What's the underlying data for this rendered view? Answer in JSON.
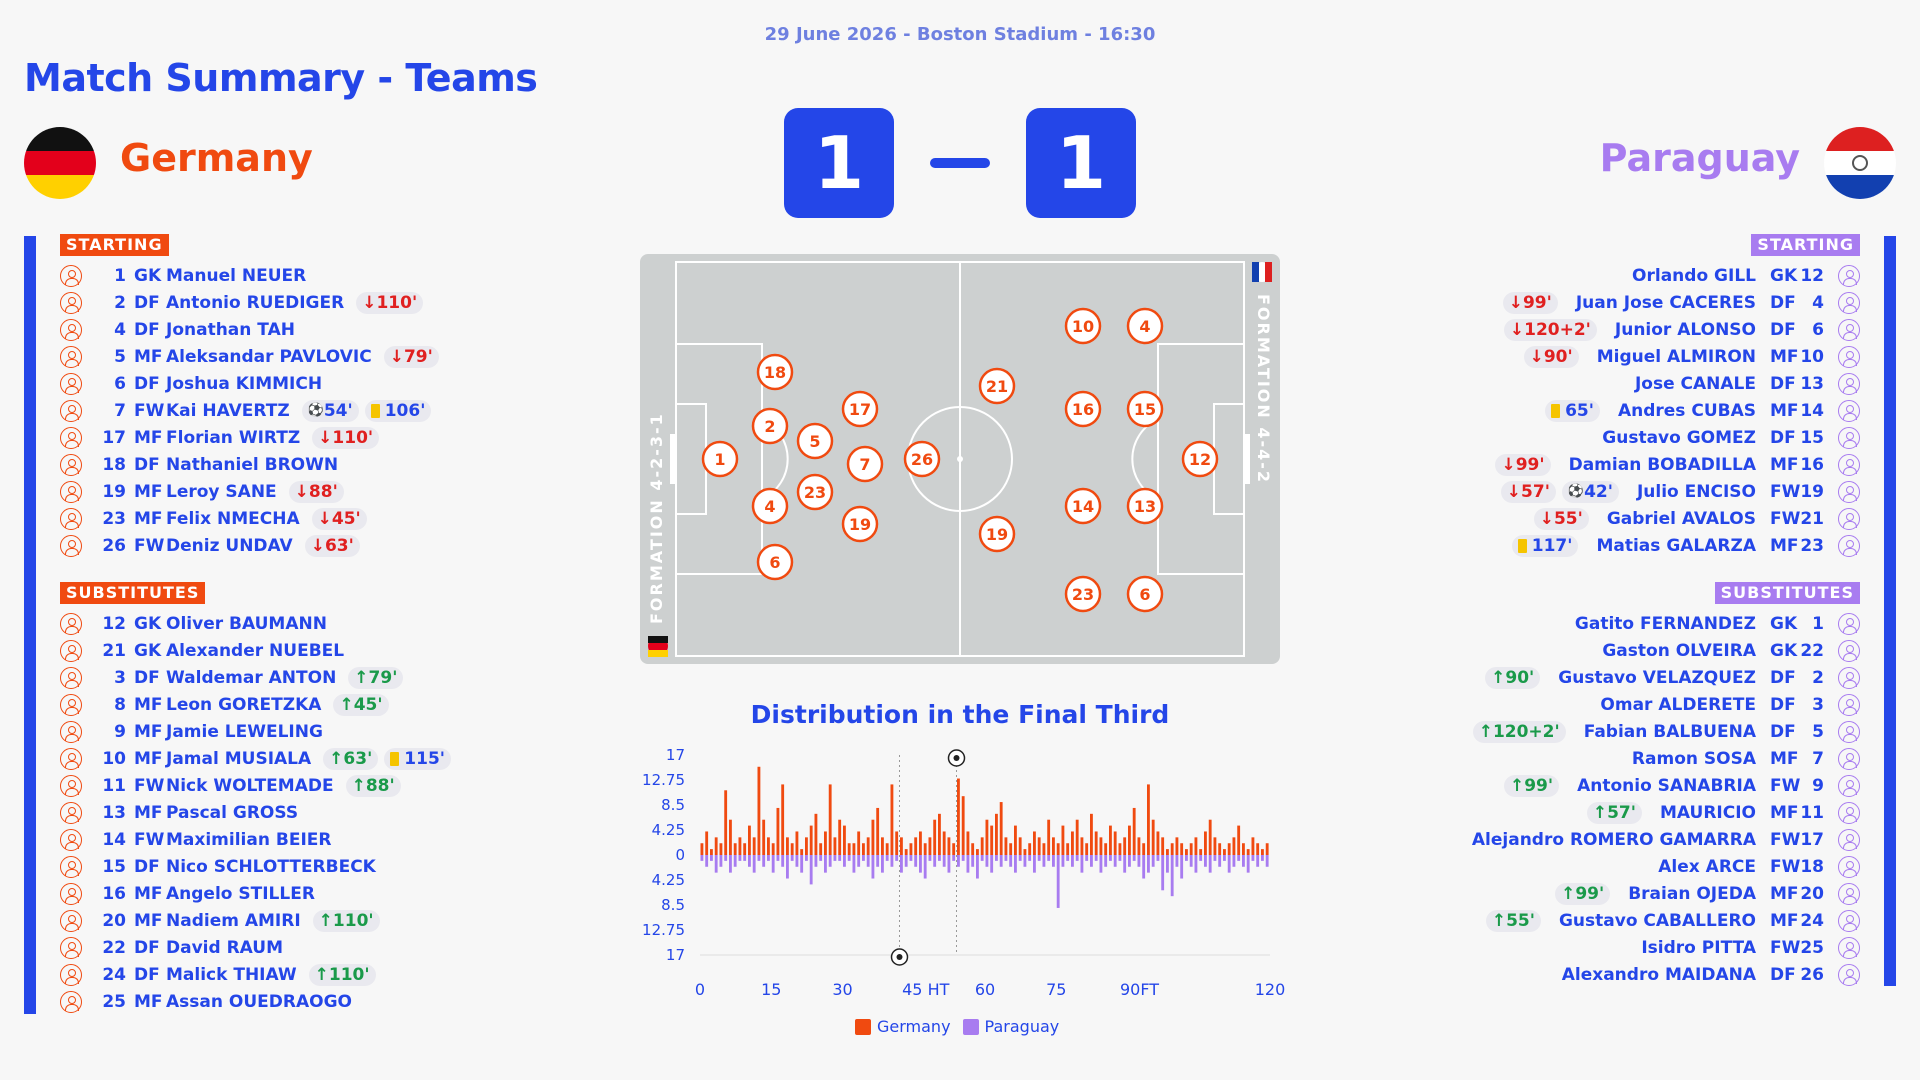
{
  "header": {
    "subtitle": "29 June 2026 - Boston Stadium - 16:30",
    "title": "Match Summary - Teams"
  },
  "home": {
    "name": "Germany",
    "score": "1",
    "color": "#f04a10"
  },
  "away": {
    "name": "Paraguay",
    "score": "1",
    "color": "#a87cf0"
  },
  "labels": {
    "starting": "STARTING",
    "substitutes": "SUBSTITUTES"
  },
  "germany_starting": [
    {
      "num": "1",
      "pos": "GK",
      "name": "Manuel NEUER",
      "events": []
    },
    {
      "num": "2",
      "pos": "DF",
      "name": "Antonio RUEDIGER",
      "events": [
        {
          "type": "out",
          "text": "110'"
        }
      ]
    },
    {
      "num": "4",
      "pos": "DF",
      "name": "Jonathan TAH",
      "events": []
    },
    {
      "num": "5",
      "pos": "MF",
      "name": "Aleksandar PAVLOVIC",
      "events": [
        {
          "type": "out",
          "text": "79'"
        }
      ]
    },
    {
      "num": "6",
      "pos": "DF",
      "name": "Joshua KIMMICH",
      "events": []
    },
    {
      "num": "7",
      "pos": "FW",
      "name": "Kai HAVERTZ",
      "events": [
        {
          "type": "goal",
          "text": "54'"
        },
        {
          "type": "yellow",
          "text": "106'"
        }
      ]
    },
    {
      "num": "17",
      "pos": "MF",
      "name": "Florian WIRTZ",
      "events": [
        {
          "type": "out",
          "text": "110'"
        }
      ]
    },
    {
      "num": "18",
      "pos": "DF",
      "name": "Nathaniel BROWN",
      "events": []
    },
    {
      "num": "19",
      "pos": "MF",
      "name": "Leroy SANE",
      "events": [
        {
          "type": "out",
          "text": "88'"
        }
      ]
    },
    {
      "num": "23",
      "pos": "MF",
      "name": "Felix NMECHA",
      "events": [
        {
          "type": "out",
          "text": "45'"
        }
      ]
    },
    {
      "num": "26",
      "pos": "FW",
      "name": "Deniz UNDAV",
      "events": [
        {
          "type": "out",
          "text": "63'"
        }
      ]
    }
  ],
  "germany_subs": [
    {
      "num": "12",
      "pos": "GK",
      "name": "Oliver BAUMANN",
      "events": []
    },
    {
      "num": "21",
      "pos": "GK",
      "name": "Alexander NUEBEL",
      "events": []
    },
    {
      "num": "3",
      "pos": "DF",
      "name": "Waldemar ANTON",
      "events": [
        {
          "type": "in",
          "text": "79'"
        }
      ]
    },
    {
      "num": "8",
      "pos": "MF",
      "name": "Leon GORETZKA",
      "events": [
        {
          "type": "in",
          "text": "45'"
        }
      ]
    },
    {
      "num": "9",
      "pos": "MF",
      "name": "Jamie LEWELING",
      "events": []
    },
    {
      "num": "10",
      "pos": "MF",
      "name": "Jamal MUSIALA",
      "events": [
        {
          "type": "in",
          "text": "63'"
        },
        {
          "type": "yellow",
          "text": "115'"
        }
      ]
    },
    {
      "num": "11",
      "pos": "FW",
      "name": "Nick WOLTEMADE",
      "events": [
        {
          "type": "in",
          "text": "88'"
        }
      ]
    },
    {
      "num": "13",
      "pos": "MF",
      "name": "Pascal GROSS",
      "events": []
    },
    {
      "num": "14",
      "pos": "FW",
      "name": "Maximilian BEIER",
      "events": []
    },
    {
      "num": "15",
      "pos": "DF",
      "name": "Nico SCHLOTTERBECK",
      "events": []
    },
    {
      "num": "16",
      "pos": "MF",
      "name": "Angelo STILLER",
      "events": []
    },
    {
      "num": "20",
      "pos": "MF",
      "name": "Nadiem AMIRI",
      "events": [
        {
          "type": "in",
          "text": "110'"
        }
      ]
    },
    {
      "num": "22",
      "pos": "DF",
      "name": "David RAUM",
      "events": []
    },
    {
      "num": "24",
      "pos": "DF",
      "name": "Malick THIAW",
      "events": [
        {
          "type": "in",
          "text": "110'"
        }
      ]
    },
    {
      "num": "25",
      "pos": "MF",
      "name": "Assan OUEDRAOGO",
      "events": []
    }
  ],
  "paraguay_starting": [
    {
      "num": "12",
      "pos": "GK",
      "name": "Orlando GILL",
      "events": []
    },
    {
      "num": "4",
      "pos": "DF",
      "name": "Juan Jose CACERES",
      "events": [
        {
          "type": "out",
          "text": "99'"
        }
      ]
    },
    {
      "num": "6",
      "pos": "DF",
      "name": "Junior ALONSO",
      "events": [
        {
          "type": "out",
          "text": "120+2'"
        }
      ]
    },
    {
      "num": "10",
      "pos": "MF",
      "name": "Miguel ALMIRON",
      "events": [
        {
          "type": "out",
          "text": "90'"
        }
      ]
    },
    {
      "num": "13",
      "pos": "DF",
      "name": "Jose CANALE",
      "events": []
    },
    {
      "num": "14",
      "pos": "MF",
      "name": "Andres CUBAS",
      "events": [
        {
          "type": "yellow",
          "text": "65'"
        }
      ]
    },
    {
      "num": "15",
      "pos": "DF",
      "name": "Gustavo GOMEZ",
      "events": []
    },
    {
      "num": "16",
      "pos": "MF",
      "name": "Damian BOBADILLA",
      "events": [
        {
          "type": "out",
          "text": "99'"
        }
      ]
    },
    {
      "num": "19",
      "pos": "FW",
      "name": "Julio ENCISO",
      "events": [
        {
          "type": "out",
          "text": "57'"
        },
        {
          "type": "goal",
          "text": "42'"
        }
      ]
    },
    {
      "num": "21",
      "pos": "FW",
      "name": "Gabriel AVALOS",
      "events": [
        {
          "type": "out",
          "text": "55'"
        }
      ]
    },
    {
      "num": "23",
      "pos": "MF",
      "name": "Matias GALARZA",
      "events": [
        {
          "type": "yellow",
          "text": "117'"
        }
      ]
    }
  ],
  "paraguay_subs": [
    {
      "num": "1",
      "pos": "GK",
      "name": "Gatito FERNANDEZ",
      "events": []
    },
    {
      "num": "22",
      "pos": "GK",
      "name": "Gaston OLVEIRA",
      "events": []
    },
    {
      "num": "2",
      "pos": "DF",
      "name": "Gustavo VELAZQUEZ",
      "events": [
        {
          "type": "in",
          "text": "90'"
        }
      ]
    },
    {
      "num": "3",
      "pos": "DF",
      "name": "Omar ALDERETE",
      "events": []
    },
    {
      "num": "5",
      "pos": "DF",
      "name": "Fabian BALBUENA",
      "events": [
        {
          "type": "in",
          "text": "120+2'"
        }
      ]
    },
    {
      "num": "7",
      "pos": "MF",
      "name": "Ramon SOSA",
      "events": []
    },
    {
      "num": "9",
      "pos": "FW",
      "name": "Antonio SANABRIA",
      "events": [
        {
          "type": "in",
          "text": "99'"
        }
      ]
    },
    {
      "num": "11",
      "pos": "MF",
      "name": "MAURICIO",
      "events": [
        {
          "type": "in",
          "text": "57'"
        }
      ]
    },
    {
      "num": "17",
      "pos": "FW",
      "name": "Alejandro ROMERO GAMARRA",
      "events": []
    },
    {
      "num": "18",
      "pos": "FW",
      "name": "Alex ARCE",
      "events": []
    },
    {
      "num": "20",
      "pos": "MF",
      "name": "Braian OJEDA",
      "events": [
        {
          "type": "in",
          "text": "99'"
        }
      ]
    },
    {
      "num": "24",
      "pos": "MF",
      "name": "Gustavo CABALLERO",
      "events": [
        {
          "type": "in",
          "text": "55'"
        }
      ]
    },
    {
      "num": "25",
      "pos": "FW",
      "name": "Isidro PITTA",
      "events": []
    },
    {
      "num": "26",
      "pos": "DF",
      "name": "Alexandro MAIDANA",
      "events": []
    }
  ],
  "pitch": {
    "home_formation": "FORMATION 4-2-3-1",
    "away_formation": "FORMATION 4-4-2",
    "home_players": [
      "1",
      "2",
      "4",
      "18",
      "6",
      "5",
      "23",
      "17",
      "7",
      "19",
      "26"
    ],
    "away_players": [
      "12",
      "15",
      "13",
      "16",
      "14",
      "21",
      "19",
      "10",
      "4",
      "23",
      "6"
    ]
  },
  "chart_data": {
    "type": "bar",
    "title": "Distribution in the Final Third",
    "x_ticks": [
      "0",
      "15",
      "30",
      "45 HT",
      "60",
      "75",
      "90FT",
      "120"
    ],
    "y_ticks": [
      "17",
      "12.75",
      "8.5",
      "4.25",
      "0",
      "4.25",
      "8.5",
      "12.75",
      "17"
    ],
    "ylim": [
      -17,
      17
    ],
    "xlim": [
      0,
      120
    ],
    "series": [
      {
        "name": "Germany",
        "color": "#f04a10",
        "values": [
          2,
          4,
          1,
          3,
          2,
          11,
          6,
          2,
          3,
          2,
          5,
          3,
          15,
          6,
          3,
          2,
          8,
          12,
          3,
          2,
          4,
          1,
          3,
          5,
          7,
          2,
          4,
          12,
          3,
          6,
          5,
          2,
          2,
          4,
          2,
          3,
          6,
          8,
          3,
          2,
          12,
          4,
          3,
          1,
          2,
          3,
          4,
          2,
          3,
          6,
          7,
          4,
          3,
          2,
          13,
          10,
          4,
          2,
          1,
          3,
          6,
          5,
          7,
          9,
          3,
          2,
          5,
          3,
          1,
          2,
          4,
          3,
          2,
          6,
          3,
          2,
          5,
          2,
          4,
          6,
          3,
          2,
          7,
          4,
          3,
          2,
          5,
          4,
          2,
          3,
          5,
          8,
          3,
          2,
          12,
          6,
          4,
          3,
          1,
          2,
          3,
          2,
          1,
          2,
          3,
          1,
          4,
          6,
          3,
          2,
          1,
          2,
          3,
          5,
          2,
          1,
          3,
          2,
          1,
          2
        ]
      },
      {
        "name": "Paraguay",
        "color": "#a87cf0",
        "values": [
          -1,
          -2,
          -1,
          -3,
          -2,
          -1,
          -3,
          -2,
          -1,
          -1,
          -2,
          -3,
          -1,
          -2,
          -1,
          -3,
          -1,
          -2,
          -4,
          -1,
          -2,
          -3,
          -1,
          -5,
          -2,
          -1,
          -3,
          -2,
          -1,
          -1,
          -2,
          -1,
          -3,
          -2,
          -1,
          -2,
          -4,
          -2,
          -3,
          -1,
          -2,
          -1,
          -3,
          -2,
          -1,
          -2,
          -3,
          -4,
          -1,
          -2,
          -1,
          -2,
          -3,
          -1,
          -2,
          -1,
          -3,
          -2,
          -4,
          -1,
          -2,
          -3,
          -1,
          -2,
          -1,
          -2,
          -3,
          -1,
          -2,
          -1,
          -3,
          -1,
          -2,
          -1,
          -2,
          -9,
          -2,
          -1,
          -2,
          -1,
          -3,
          -1,
          -2,
          -1,
          -3,
          -2,
          -1,
          -2,
          -1,
          -3,
          -2,
          -1,
          -2,
          -4,
          -3,
          -2,
          -1,
          -6,
          -3,
          -7,
          -2,
          -4,
          -1,
          -2,
          -3,
          -1,
          -2,
          -3,
          -1,
          -2,
          -1,
          -3,
          -2,
          -1,
          -2,
          -3,
          -1,
          -2,
          -1,
          -2
        ]
      }
    ],
    "goals": [
      {
        "team": "Germany",
        "minute": 54
      },
      {
        "team": "Paraguay",
        "minute": 42
      }
    ],
    "legend": [
      "Germany",
      "Paraguay"
    ]
  }
}
